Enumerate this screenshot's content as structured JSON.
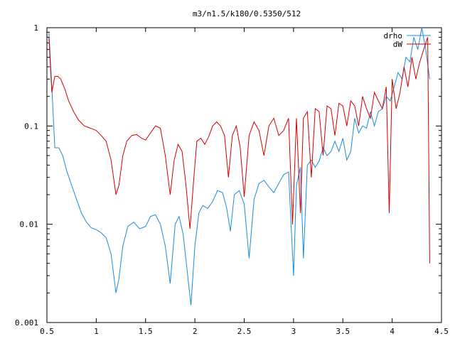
{
  "chart_data": {
    "type": "line",
    "title": "m3/n1.5/k180/0.5350/512",
    "xlabel": "",
    "ylabel": "",
    "xlim": [
      0.5,
      4.5
    ],
    "ylim": [
      0.001,
      1
    ],
    "yscale": "log",
    "xticks": [
      "0.5",
      "1",
      "1.5",
      "2",
      "2.5",
      "3",
      "3.5",
      "4",
      "4.5"
    ],
    "yticks": [
      "0.001",
      "0.01",
      "0.1",
      "1"
    ],
    "legend_position": "top-right",
    "grid": false,
    "series": [
      {
        "name": "drho",
        "color": "#1a8cdb",
        "x": [
          0.52,
          0.55,
          0.58,
          0.62,
          0.66,
          0.7,
          0.75,
          0.8,
          0.85,
          0.9,
          0.95,
          1.0,
          1.05,
          1.1,
          1.15,
          1.2,
          1.23,
          1.27,
          1.32,
          1.38,
          1.44,
          1.5,
          1.55,
          1.6,
          1.65,
          1.7,
          1.75,
          1.8,
          1.84,
          1.88,
          1.92,
          1.96,
          2.0,
          2.04,
          2.08,
          2.13,
          2.18,
          2.23,
          2.28,
          2.32,
          2.36,
          2.4,
          2.45,
          2.5,
          2.55,
          2.6,
          2.65,
          2.7,
          2.75,
          2.8,
          2.85,
          2.9,
          2.95,
          3.0,
          3.03,
          3.07,
          3.1,
          3.14,
          3.18,
          3.22,
          3.26,
          3.3,
          3.34,
          3.38,
          3.42,
          3.46,
          3.5,
          3.54,
          3.58,
          3.62,
          3.66,
          3.7,
          3.74,
          3.78,
          3.82,
          3.86,
          3.9,
          3.94,
          3.98,
          4.02,
          4.06,
          4.1,
          4.14,
          4.18,
          4.22,
          4.26,
          4.3,
          4.34,
          4.38
        ],
        "values": [
          0.9,
          0.25,
          0.06,
          0.06,
          0.05,
          0.035,
          0.025,
          0.018,
          0.013,
          0.0105,
          0.0092,
          0.0088,
          0.0082,
          0.0073,
          0.005,
          0.002,
          0.0028,
          0.006,
          0.0095,
          0.0105,
          0.009,
          0.0095,
          0.012,
          0.0125,
          0.01,
          0.006,
          0.0025,
          0.01,
          0.012,
          0.008,
          0.0035,
          0.0015,
          0.006,
          0.013,
          0.0155,
          0.0145,
          0.017,
          0.022,
          0.021,
          0.015,
          0.0085,
          0.02,
          0.022,
          0.016,
          0.0045,
          0.018,
          0.026,
          0.028,
          0.024,
          0.021,
          0.026,
          0.032,
          0.034,
          0.003,
          0.025,
          0.038,
          0.0045,
          0.04,
          0.045,
          0.038,
          0.044,
          0.06,
          0.05,
          0.055,
          0.07,
          0.055,
          0.075,
          0.045,
          0.055,
          0.12,
          0.085,
          0.1,
          0.095,
          0.14,
          0.1,
          0.14,
          0.15,
          0.2,
          0.18,
          0.25,
          0.35,
          0.3,
          0.5,
          0.45,
          0.8,
          0.6,
          1.0,
          0.6,
          0.3
        ]
      },
      {
        "name": "dW",
        "color": "#d40000",
        "x": [
          0.52,
          0.55,
          0.58,
          0.61,
          0.64,
          0.68,
          0.72,
          0.77,
          0.82,
          0.88,
          0.94,
          1.0,
          1.05,
          1.1,
          1.15,
          1.2,
          1.23,
          1.27,
          1.31,
          1.36,
          1.41,
          1.46,
          1.5,
          1.55,
          1.6,
          1.65,
          1.7,
          1.75,
          1.79,
          1.83,
          1.87,
          1.91,
          1.95,
          1.99,
          2.02,
          2.06,
          2.1,
          2.14,
          2.18,
          2.22,
          2.26,
          2.3,
          2.34,
          2.38,
          2.42,
          2.46,
          2.5,
          2.55,
          2.6,
          2.65,
          2.7,
          2.75,
          2.8,
          2.85,
          2.9,
          2.95,
          2.99,
          3.03,
          3.07,
          3.1,
          3.14,
          3.18,
          3.22,
          3.26,
          3.3,
          3.34,
          3.38,
          3.42,
          3.46,
          3.5,
          3.54,
          3.58,
          3.62,
          3.66,
          3.7,
          3.74,
          3.78,
          3.82,
          3.86,
          3.9,
          3.94,
          3.97,
          4.0,
          4.04,
          4.08,
          4.12,
          4.16,
          4.2,
          4.24,
          4.28,
          4.32,
          4.36,
          4.38
        ],
        "values": [
          0.8,
          0.22,
          0.32,
          0.32,
          0.3,
          0.24,
          0.18,
          0.14,
          0.115,
          0.1,
          0.095,
          0.09,
          0.08,
          0.07,
          0.045,
          0.02,
          0.025,
          0.05,
          0.07,
          0.08,
          0.082,
          0.075,
          0.072,
          0.085,
          0.1,
          0.095,
          0.05,
          0.02,
          0.045,
          0.065,
          0.055,
          0.025,
          0.009,
          0.03,
          0.07,
          0.075,
          0.065,
          0.078,
          0.1,
          0.11,
          0.1,
          0.08,
          0.03,
          0.08,
          0.1,
          0.06,
          0.019,
          0.08,
          0.11,
          0.09,
          0.05,
          0.1,
          0.12,
          0.08,
          0.09,
          0.12,
          0.01,
          0.12,
          0.013,
          0.12,
          0.14,
          0.03,
          0.15,
          0.14,
          0.05,
          0.16,
          0.15,
          0.08,
          0.17,
          0.16,
          0.1,
          0.18,
          0.16,
          0.1,
          0.2,
          0.15,
          0.12,
          0.22,
          0.18,
          0.15,
          0.25,
          0.013,
          0.3,
          0.15,
          0.22,
          0.4,
          0.25,
          0.5,
          0.3,
          0.45,
          0.6,
          0.8,
          0.004
        ]
      }
    ]
  }
}
